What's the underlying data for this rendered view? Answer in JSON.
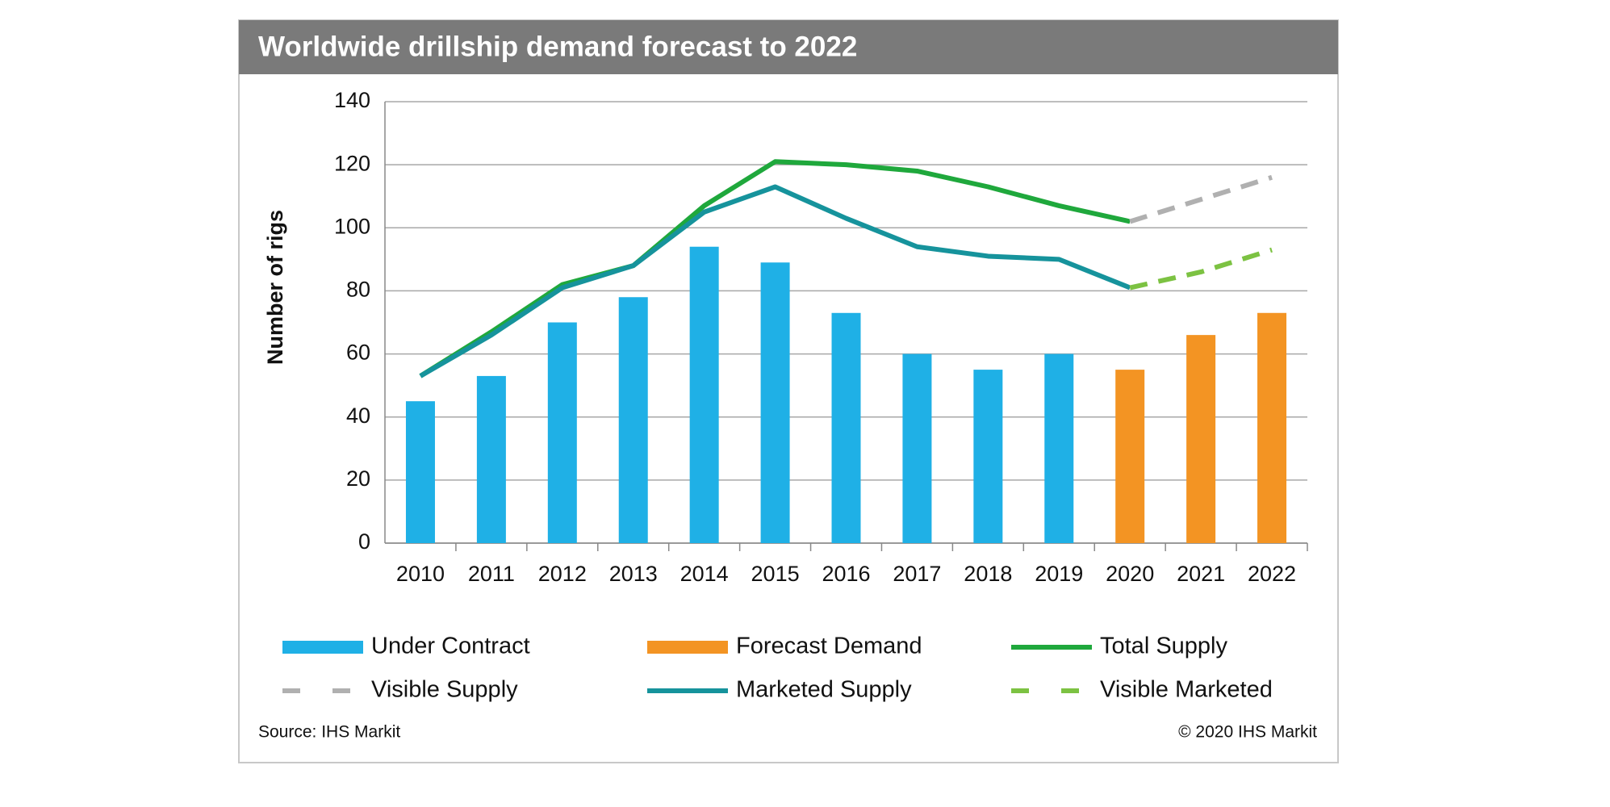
{
  "chart_data": {
    "type": "bar",
    "title": "Worldwide drillship demand forecast to 2022",
    "y_label": "Number of rigs",
    "categories": [
      "2010",
      "2011",
      "2012",
      "2013",
      "2014",
      "2015",
      "2016",
      "2017",
      "2018",
      "2019",
      "2020",
      "2021",
      "2022"
    ],
    "series": [
      {
        "name": "Under Contract",
        "type": "bar",
        "color": "#1fb0e6",
        "values": [
          45,
          53,
          70,
          78,
          94,
          89,
          73,
          60,
          55,
          60,
          null,
          null,
          null
        ]
      },
      {
        "name": "Forecast Demand",
        "type": "bar",
        "color": "#f39423",
        "values": [
          null,
          null,
          null,
          null,
          null,
          null,
          null,
          null,
          null,
          null,
          55,
          66,
          73
        ]
      },
      {
        "name": "Total Supply",
        "type": "line",
        "dashed": false,
        "color": "#1fa83c",
        "values": [
          53,
          67,
          82,
          88,
          107,
          121,
          120,
          118,
          113,
          107,
          102,
          null,
          null
        ]
      },
      {
        "name": "Visible Supply",
        "type": "line",
        "dashed": true,
        "color": "#b0b0b0",
        "values": [
          null,
          null,
          null,
          null,
          null,
          null,
          null,
          null,
          null,
          null,
          102,
          109,
          116
        ]
      },
      {
        "name": "Marketed Supply",
        "type": "line",
        "dashed": false,
        "color": "#16939c",
        "values": [
          53,
          66,
          81,
          88,
          105,
          113,
          103,
          94,
          91,
          90,
          81,
          null,
          null
        ]
      },
      {
        "name": "Visible Marketed",
        "type": "line",
        "dashed": true,
        "color": "#7cc242",
        "values": [
          null,
          null,
          null,
          null,
          null,
          null,
          null,
          null,
          null,
          null,
          81,
          86,
          93
        ]
      }
    ],
    "ylim": [
      0,
      140
    ],
    "yticks": [
      0,
      20,
      40,
      60,
      80,
      100,
      120,
      140
    ],
    "grid": true,
    "source": "Source: IHS Markit",
    "copyright": "© 2020 IHS Markit"
  }
}
